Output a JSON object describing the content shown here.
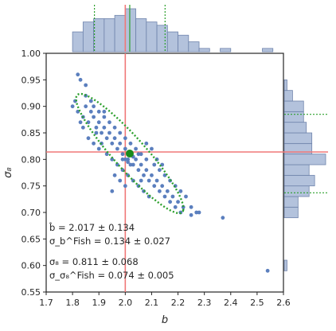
{
  "chart_data": {
    "type": "scatter",
    "xlabel": "b",
    "ylabel": "σ₈",
    "xlim": [
      1.7,
      2.6
    ],
    "ylim": [
      0.55,
      1.0
    ],
    "xticks": [
      "1.7",
      "1.8",
      "1.9",
      "2.0",
      "2.1",
      "2.2",
      "2.3",
      "2.4",
      "2.5",
      "2.6"
    ],
    "yticks": [
      "0.55",
      "0.60",
      "0.65",
      "0.70",
      "0.75",
      "0.80",
      "0.85",
      "0.90",
      "0.95",
      "1.00"
    ],
    "grid": false,
    "colors": {
      "points": "#5b7fbe",
      "hist_fill": "#b3c2dc",
      "hist_edge": "#6f84ac",
      "truth": "#f07878",
      "fisher": "#2ca02c",
      "mean": "#1a8a1a"
    },
    "truth": {
      "b": 2.0,
      "sigma8": 0.814
    },
    "fisher_mean": {
      "b": 2.017,
      "sigma8": 0.811
    },
    "fisher_ellipse": {
      "center": [
        2.017,
        0.811
      ],
      "sigma_b": 0.134,
      "sigma_s8": 0.074,
      "correlation": -0.92
    },
    "points": [
      [
        1.82,
        0.96
      ],
      [
        1.83,
        0.95
      ],
      [
        1.85,
        0.94
      ],
      [
        1.8,
        0.9
      ],
      [
        1.81,
        0.91
      ],
      [
        1.82,
        0.89
      ],
      [
        1.84,
        0.88
      ],
      [
        1.85,
        0.9
      ],
      [
        1.86,
        0.87
      ],
      [
        1.87,
        0.89
      ],
      [
        1.88,
        0.88
      ],
      [
        1.89,
        0.86
      ],
      [
        1.9,
        0.87
      ],
      [
        1.91,
        0.85
      ],
      [
        1.92,
        0.86
      ],
      [
        1.93,
        0.84
      ],
      [
        1.94,
        0.85
      ],
      [
        1.95,
        0.83
      ],
      [
        1.96,
        0.84
      ],
      [
        1.97,
        0.82
      ],
      [
        1.98,
        0.83
      ],
      [
        1.99,
        0.81
      ],
      [
        2.0,
        0.82
      ],
      [
        2.01,
        0.8
      ],
      [
        2.02,
        0.81
      ],
      [
        2.03,
        0.79
      ],
      [
        2.04,
        0.8
      ],
      [
        2.05,
        0.78
      ],
      [
        2.06,
        0.79
      ],
      [
        2.07,
        0.77
      ],
      [
        2.08,
        0.78
      ],
      [
        2.09,
        0.76
      ],
      [
        2.1,
        0.77
      ],
      [
        2.11,
        0.75
      ],
      [
        2.12,
        0.76
      ],
      [
        2.13,
        0.74
      ],
      [
        2.14,
        0.75
      ],
      [
        2.15,
        0.73
      ],
      [
        2.16,
        0.74
      ],
      [
        2.17,
        0.72
      ],
      [
        2.18,
        0.73
      ],
      [
        2.19,
        0.71
      ],
      [
        2.2,
        0.72
      ],
      [
        2.21,
        0.7
      ],
      [
        2.22,
        0.71
      ],
      [
        1.88,
        0.9
      ],
      [
        1.9,
        0.89
      ],
      [
        1.92,
        0.88
      ],
      [
        1.94,
        0.87
      ],
      [
        1.96,
        0.86
      ],
      [
        1.98,
        0.85
      ],
      [
        2.0,
        0.84
      ],
      [
        2.02,
        0.83
      ],
      [
        2.04,
        0.82
      ],
      [
        2.06,
        0.81
      ],
      [
        2.08,
        0.8
      ],
      [
        1.97,
        0.79
      ],
      [
        1.99,
        0.78
      ],
      [
        2.01,
        0.77
      ],
      [
        2.03,
        0.76
      ],
      [
        2.05,
        0.75
      ],
      [
        2.07,
        0.74
      ],
      [
        2.09,
        0.73
      ],
      [
        1.86,
        0.84
      ],
      [
        1.88,
        0.83
      ],
      [
        1.9,
        0.82
      ],
      [
        1.93,
        0.81
      ],
      [
        2.11,
        0.79
      ],
      [
        2.13,
        0.78
      ],
      [
        2.15,
        0.77
      ],
      [
        2.17,
        0.76
      ],
      [
        2.19,
        0.75
      ],
      [
        1.95,
        0.8
      ],
      [
        2.0,
        0.8
      ],
      [
        2.02,
        0.79
      ],
      [
        2.05,
        0.81
      ],
      [
        2.1,
        0.82
      ],
      [
        2.12,
        0.8
      ],
      [
        1.91,
        0.83
      ],
      [
        1.89,
        0.85
      ],
      [
        1.84,
        0.86
      ],
      [
        1.83,
        0.87
      ],
      [
        2.21,
        0.74
      ],
      [
        2.23,
        0.73
      ],
      [
        2.25,
        0.71
      ],
      [
        1.96,
        0.77
      ],
      [
        1.98,
        0.76
      ],
      [
        2.0,
        0.75
      ],
      [
        2.25,
        0.695
      ],
      [
        2.27,
        0.7
      ],
      [
        2.28,
        0.7
      ],
      [
        2.37,
        0.69
      ],
      [
        2.54,
        0.59
      ],
      [
        1.99,
        0.8
      ],
      [
        2.01,
        0.795
      ],
      [
        2.03,
        0.805
      ],
      [
        1.92,
        0.89
      ],
      [
        1.87,
        0.91
      ],
      [
        2.08,
        0.83
      ],
      [
        2.14,
        0.79
      ],
      [
        1.95,
        0.74
      ],
      [
        2.06,
        0.76
      ],
      [
        1.85,
        0.92
      ]
    ],
    "annotations": {
      "b_hat": "b̂ = 2.017 ± 0.134",
      "b_fish": "σ_b^Fish = 0.134 ± 0.027",
      "s8_hat": "σ₈ = 0.811 ± 0.068",
      "s8_fish": "σ_σ₈^Fish = 0.074 ± 0.005"
    }
  }
}
